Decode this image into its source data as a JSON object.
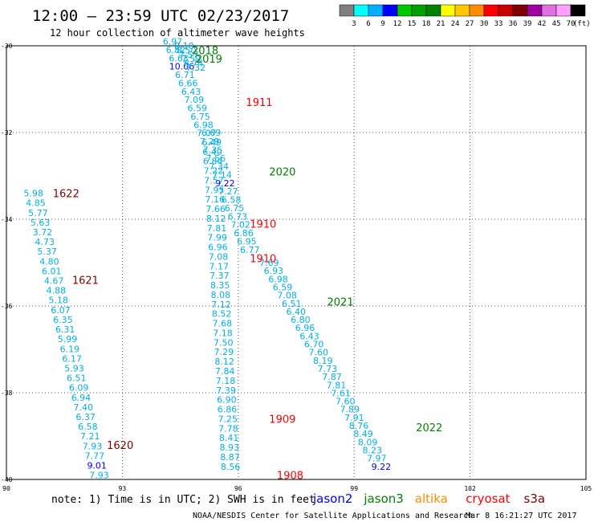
{
  "header": {
    "title": "12:00 — 23:59 UTC 02/23/2017",
    "subtitle": "12 hour collection of altimeter wave heights"
  },
  "legend": {
    "unit": "(ft)",
    "colors": [
      "#808080",
      "#00ffff",
      "#00b0ff",
      "#0000ff",
      "#00c800",
      "#00a000",
      "#008000",
      "#ffff00",
      "#ffc800",
      "#ff8c00",
      "#ff0000",
      "#c80000",
      "#800000",
      "#a000a0",
      "#e070e0",
      "#ffa0ff",
      "#000000"
    ],
    "labels": [
      "3",
      "6",
      "9",
      "12",
      "15",
      "18",
      "21",
      "24",
      "27",
      "30",
      "33",
      "36",
      "39",
      "42",
      "45",
      "70"
    ]
  },
  "footer": {
    "note": "note:  1) Time is in UTC; 2) SWH is in feet",
    "credit": "NOAA/NESDIS Center for Satellite Applications and Research",
    "timestamp": "Mar  8 16:21:27 UTC 2017",
    "satellites": [
      {
        "name": "jason2",
        "color": "#0000ff"
      },
      {
        "name": "jason3",
        "color": "#008000"
      },
      {
        "name": "altika",
        "color": "#ff8c00"
      },
      {
        "name": "cryosat",
        "color": "#ff0000"
      },
      {
        "name": "s3a",
        "color": "#800000"
      }
    ]
  },
  "chart_data": {
    "type": "scatter",
    "xlim": [
      90,
      105
    ],
    "ylim": [
      -40,
      -30
    ],
    "xticks": [
      90,
      93,
      96,
      99,
      102,
      105
    ],
    "xtick_labels": [
      "90",
      "93",
      "96",
      "99",
      "102",
      "105"
    ],
    "yticks": [
      -30,
      -32,
      -34,
      -36,
      -38,
      -40
    ],
    "ytick_labels": [
      "-30",
      "-32",
      "-34",
      "-36",
      "-38",
      "-40"
    ],
    "grid": true,
    "tracks": [
      {
        "start": [
          94.3,
          -29.9
        ],
        "end": [
          96.3,
          -34.7
        ],
        "values": [
          "6.97",
          "6.82",
          "6.63",
          "10.06",
          "6.71",
          "6.66",
          "6.43",
          "7.09",
          "6.59",
          "6.75",
          "6.98",
          "7.07",
          "7.29",
          "7.35",
          "7.56",
          "7.34",
          "7.14",
          "9.22",
          "7.27",
          "6.58",
          "6.75",
          "6.73",
          "7.02",
          "6.86",
          "6.95",
          "6.77"
        ]
      },
      {
        "start": [
          94.6,
          -30.0
        ],
        "end": [
          94.9,
          -30.5
        ],
        "values": [
          "8.10",
          "8.50",
          "7.57",
          "7.59",
          "6.74",
          "7.32"
        ]
      },
      {
        "start": [
          96.8,
          -35.0
        ],
        "end": [
          99.7,
          -39.7
        ],
        "values": [
          "7.69",
          "6.93",
          "6.98",
          "6.59",
          "7.08",
          "6.51",
          "6.40",
          "6.80",
          "6.96",
          "6.43",
          "6.70",
          "7.60",
          "8.19",
          "7.73",
          "7.87",
          "7.81",
          "7.61",
          "7.60",
          "7.89",
          "7.91",
          "8.76",
          "8.49",
          "8.09",
          "8.23",
          "7.97",
          "9.22"
        ]
      },
      {
        "start": [
          95.3,
          -32.0
        ],
        "end": [
          95.8,
          -39.7
        ],
        "values": [
          "6.69",
          "6.49",
          "6.40",
          "6.84",
          "7.22",
          "7.57",
          "7.95",
          "7.16",
          "7.66",
          "8.12",
          "7.81",
          "7.99",
          "6.96",
          "7.08",
          "7.17",
          "7.37",
          "8.35",
          "8.08",
          "7.12",
          "8.52",
          "7.68",
          "7.18",
          "7.50",
          "7.29",
          "8.12",
          "7.84",
          "7.18",
          "7.39",
          "6.90",
          "6.86",
          "7.25",
          "7.78",
          "8.41",
          "8.93",
          "8.87",
          "8.56"
        ]
      },
      {
        "start": [
          90.7,
          -33.4
        ],
        "end": [
          92.4,
          -39.9
        ],
        "values": [
          "5.98",
          "4.85",
          "5.77",
          "5.63",
          "3.72",
          "4.73",
          "5.37",
          "4.80",
          "6.01",
          "4.67",
          "4.88",
          "5.18",
          "6.07",
          "6.35",
          "6.31",
          "5.99",
          "6.19",
          "6.17",
          "5.93",
          "6.51",
          "6.09",
          "6.94",
          "7.40",
          "6.37",
          "6.58",
          "7.21",
          "7.93",
          "7.77",
          "9.01",
          "7.93"
        ]
      }
    ],
    "highlights": [
      {
        "value": "10.06",
        "color": "#0000ff"
      },
      {
        "value": "9.22",
        "color": "#0000ff"
      },
      {
        "value": "9.01",
        "color": "#0000ff"
      }
    ],
    "pass_labels": [
      {
        "text": "2018",
        "x": 94.8,
        "y": -30.1,
        "color": "#008000"
      },
      {
        "text": "2019",
        "x": 94.9,
        "y": -30.3,
        "color": "#008000"
      },
      {
        "text": "1911",
        "x": 96.2,
        "y": -31.3,
        "color": "#ff0000"
      },
      {
        "text": "2020",
        "x": 96.8,
        "y": -32.9,
        "color": "#008000"
      },
      {
        "text": "1622",
        "x": 91.2,
        "y": -33.4,
        "color": "#800000"
      },
      {
        "text": "1910",
        "x": 96.3,
        "y": -34.1,
        "color": "#ff0000"
      },
      {
        "text": "1910",
        "x": 96.3,
        "y": -34.9,
        "color": "#ff0000"
      },
      {
        "text": "1621",
        "x": 91.7,
        "y": -35.4,
        "color": "#800000"
      },
      {
        "text": "2021",
        "x": 98.3,
        "y": -35.9,
        "color": "#008000"
      },
      {
        "text": "1909",
        "x": 96.8,
        "y": -38.6,
        "color": "#ff0000"
      },
      {
        "text": "2022",
        "x": 100.6,
        "y": -38.8,
        "color": "#008000"
      },
      {
        "text": "1620",
        "x": 92.6,
        "y": -39.2,
        "color": "#800000"
      },
      {
        "text": "1908",
        "x": 97.0,
        "y": -39.9,
        "color": "#ff0000"
      }
    ]
  }
}
